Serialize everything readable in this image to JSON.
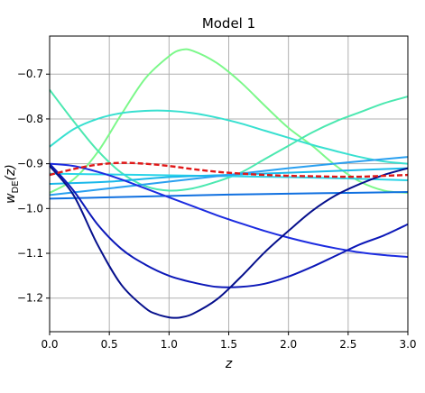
{
  "chart_data": {
    "type": "line",
    "title": "Model 1",
    "xlabel": "z",
    "ylabel_main": "w",
    "ylabel_sub": "DE",
    "ylabel_arg": "(z)",
    "xlim": [
      0.0,
      3.0
    ],
    "ylim": [
      -1.275,
      -0.615
    ],
    "xticks": [
      0.0,
      0.5,
      1.0,
      1.5,
      2.0,
      2.5,
      3.0
    ],
    "xtick_labels": [
      "0.0",
      "0.5",
      "1.0",
      "1.5",
      "2.0",
      "2.5",
      "3.0"
    ],
    "yticks": [
      -1.2,
      -1.1,
      -1.0,
      -0.9,
      -0.8,
      -0.7
    ],
    "ytick_labels": [
      "−1.2",
      "−1.1",
      "−1.0",
      "−0.9",
      "−0.8",
      "−0.7"
    ],
    "grid": true,
    "series": [
      {
        "color": "#7cf88a",
        "dashed": false,
        "x": [
          0,
          0.2,
          0.4,
          0.6,
          0.8,
          1.0,
          1.1,
          1.2,
          1.4,
          1.6,
          1.8,
          2.0,
          2.2,
          2.4,
          2.6,
          2.8,
          3.0
        ],
        "y": [
          -0.965,
          -0.935,
          -0.875,
          -0.79,
          -0.71,
          -0.66,
          -0.646,
          -0.648,
          -0.675,
          -0.718,
          -0.77,
          -0.82,
          -0.86,
          -0.905,
          -0.94,
          -0.96,
          -0.965
        ]
      },
      {
        "color": "#4be8b0",
        "dashed": false,
        "x": [
          0,
          0.2,
          0.4,
          0.6,
          0.8,
          1.0,
          1.2,
          1.4,
          1.6,
          1.8,
          2.0,
          2.2,
          2.4,
          2.6,
          2.8,
          3.0
        ],
        "y": [
          -0.735,
          -0.805,
          -0.87,
          -0.92,
          -0.95,
          -0.96,
          -0.955,
          -0.94,
          -0.92,
          -0.89,
          -0.86,
          -0.83,
          -0.805,
          -0.785,
          -0.765,
          -0.75
        ]
      },
      {
        "color": "#38e0d0",
        "dashed": false,
        "x": [
          0,
          0.2,
          0.4,
          0.6,
          0.8,
          1.0,
          1.2,
          1.4,
          1.6,
          1.8,
          2.0,
          2.2,
          2.4,
          2.6,
          2.8,
          3.0
        ],
        "y": [
          -0.862,
          -0.823,
          -0.8,
          -0.787,
          -0.782,
          -0.782,
          -0.787,
          -0.797,
          -0.81,
          -0.826,
          -0.842,
          -0.858,
          -0.872,
          -0.885,
          -0.895,
          -0.9
        ]
      },
      {
        "color": "#2ad4e8",
        "dashed": false,
        "x": [
          0,
          0.5,
          1.0,
          1.5,
          2.0,
          2.5,
          3.0
        ],
        "y": [
          -0.922,
          -0.924,
          -0.926,
          -0.928,
          -0.93,
          -0.933,
          -0.937
        ]
      },
      {
        "color": "#1ab8ea",
        "dashed": false,
        "x": [
          0,
          0.5,
          1.0,
          1.5,
          2.0,
          2.5,
          3.0
        ],
        "y": [
          -0.945,
          -0.94,
          -0.93,
          -0.925,
          -0.92,
          -0.915,
          -0.91
        ]
      },
      {
        "color": "#2aa0f0",
        "dashed": false,
        "x": [
          0,
          0.5,
          1.0,
          1.5,
          2.0,
          2.5,
          3.0
        ],
        "y": [
          -0.97,
          -0.955,
          -0.94,
          -0.925,
          -0.91,
          -0.897,
          -0.885
        ]
      },
      {
        "color": "#1070e0",
        "dashed": false,
        "x": [
          0,
          0.5,
          1.0,
          1.5,
          2.0,
          2.5,
          3.0
        ],
        "y": [
          -0.978,
          -0.975,
          -0.972,
          -0.969,
          -0.967,
          -0.965,
          -0.963
        ]
      },
      {
        "color": "#1c2ce0",
        "dashed": false,
        "x": [
          0,
          0.2,
          0.4,
          0.6,
          0.8,
          1.0,
          1.2,
          1.4,
          1.6,
          1.8,
          2.0,
          2.2,
          2.4,
          2.6,
          2.8,
          3.0
        ],
        "y": [
          -0.9,
          -0.905,
          -0.918,
          -0.935,
          -0.955,
          -0.975,
          -0.995,
          -1.015,
          -1.033,
          -1.05,
          -1.065,
          -1.078,
          -1.089,
          -1.098,
          -1.104,
          -1.108
        ]
      },
      {
        "color": "#0c18b8",
        "dashed": false,
        "x": [
          0,
          0.2,
          0.4,
          0.6,
          0.8,
          1.0,
          1.2,
          1.4,
          1.6,
          1.8,
          2.0,
          2.2,
          2.4,
          2.6,
          2.8,
          3.0
        ],
        "y": [
          -0.9,
          -0.96,
          -1.035,
          -1.09,
          -1.125,
          -1.15,
          -1.165,
          -1.175,
          -1.175,
          -1.168,
          -1.152,
          -1.13,
          -1.105,
          -1.08,
          -1.06,
          -1.035
        ]
      },
      {
        "color": "#06108c",
        "dashed": false,
        "x": [
          0,
          0.2,
          0.4,
          0.6,
          0.8,
          0.9,
          1.0,
          1.05,
          1.1,
          1.2,
          1.4,
          1.6,
          1.8,
          2.0,
          2.2,
          2.4,
          2.6,
          2.8,
          3.0
        ],
        "y": [
          -0.905,
          -0.97,
          -1.08,
          -1.17,
          -1.222,
          -1.236,
          -1.243,
          -1.244,
          -1.243,
          -1.235,
          -1.203,
          -1.153,
          -1.098,
          -1.05,
          -1.005,
          -0.97,
          -0.945,
          -0.925,
          -0.91
        ]
      },
      {
        "color": "#e01818",
        "dashed": true,
        "x": [
          0,
          0.2,
          0.4,
          0.6,
          0.8,
          1.0,
          1.2,
          1.4,
          1.6,
          1.8,
          2.0,
          2.2,
          2.4,
          2.6,
          2.8,
          3.0
        ],
        "y": [
          -0.925,
          -0.912,
          -0.902,
          -0.898,
          -0.9,
          -0.905,
          -0.912,
          -0.918,
          -0.922,
          -0.925,
          -0.927,
          -0.928,
          -0.929,
          -0.929,
          -0.927,
          -0.925
        ]
      }
    ]
  }
}
